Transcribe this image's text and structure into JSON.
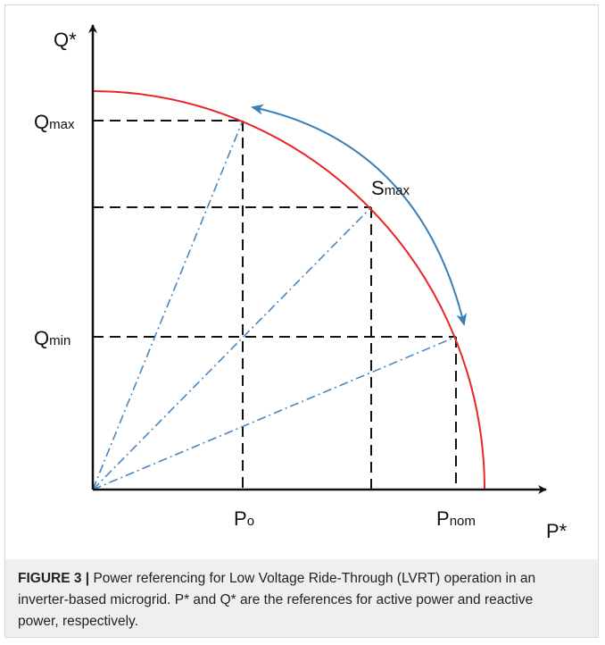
{
  "figure": {
    "labels": {
      "q_axis": "Q*",
      "p_axis": "P*",
      "q_max": {
        "base": "Q",
        "sub": "max"
      },
      "q_min": {
        "base": "Q",
        "sub": "min"
      },
      "p_o": {
        "base": "P",
        "sub": "o"
      },
      "p_nom": {
        "base": "P",
        "sub": "nom"
      },
      "s_max": {
        "base": "S",
        "sub": "max"
      }
    },
    "caption": {
      "label": "FIGURE 3 |",
      "text": "Power referencing for Low Voltage Ride-Through (LVRT) operation in an inverter-based microgrid. P* and Q* are the references for active power and reactive power, respectively."
    }
  }
}
